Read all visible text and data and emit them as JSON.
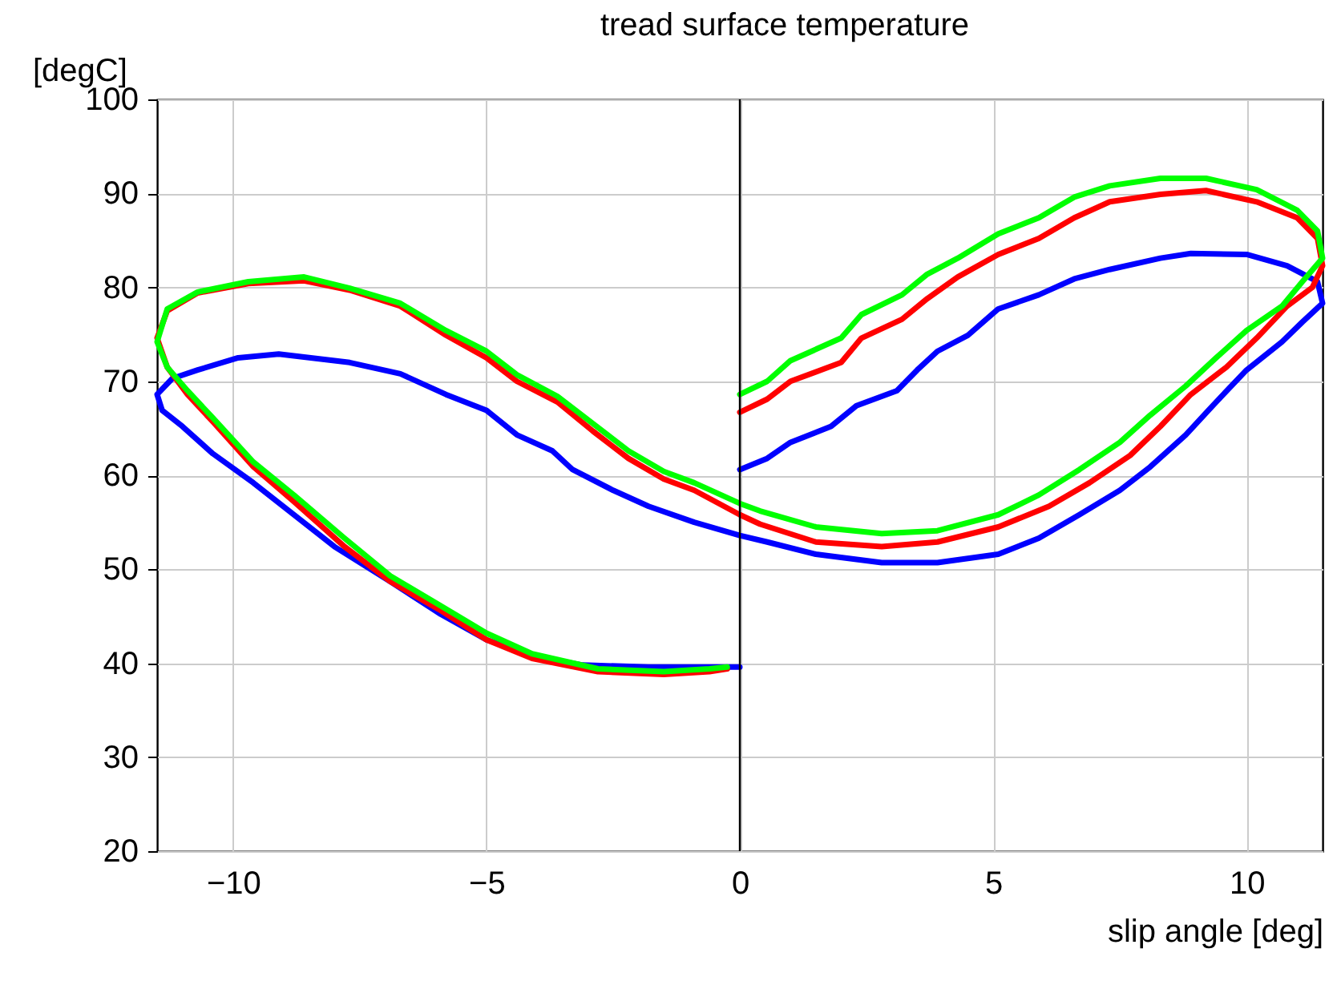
{
  "chart_data": {
    "type": "line",
    "title": "tread surface temperature",
    "xlabel": "slip angle [deg]",
    "ylabel": "[degC]",
    "xlim": [
      -11.5,
      11.5
    ],
    "xticks": [
      -10,
      -5,
      0,
      5,
      10
    ],
    "ylim": [
      20,
      100
    ],
    "yticks": [
      20,
      30,
      40,
      50,
      60,
      70,
      80,
      90,
      100
    ],
    "grid": true,
    "line_style": "solid",
    "marker": "none",
    "ref_lines": [
      {
        "axis": "x",
        "value": 0,
        "color": "#000000",
        "line_style": "solid"
      }
    ],
    "series": [
      {
        "color": "#0000ff",
        "x": [
          0,
          0.54,
          1.0,
          1.8,
          2.3,
          3.1,
          3.5,
          3.9,
          4.5,
          5.1,
          5.9,
          6.6,
          7.3,
          8.3,
          8.9,
          10.0,
          10.8,
          11.4,
          11.5,
          11.1,
          10.7,
          10.0,
          9.4,
          8.8,
          8.1,
          7.5,
          6.7,
          5.9,
          5.1,
          3.9,
          2.8,
          1.5,
          0.54,
          0,
          -0.9,
          -1.8,
          -2.5,
          -3.3,
          -3.7,
          -4.4,
          -5.0,
          -5.8,
          -6.7,
          -7.7,
          -9.1,
          -9.9,
          -10.7,
          -11.2,
          -11.5,
          -11.4,
          -11.0,
          -10.4,
          -9.6,
          -8.8,
          -8.0,
          -6.9,
          -5.9,
          -5.0,
          -4.1,
          -3.1,
          -1.8,
          -0.6,
          0
        ],
        "values": [
          60.6,
          61.8,
          63.5,
          65.2,
          67.4,
          69,
          71.2,
          73.2,
          74.9,
          77.7,
          79.2,
          80.9,
          81.9,
          83.1,
          83.6,
          83.5,
          82.3,
          80.6,
          78.3,
          76.3,
          74.2,
          71.2,
          67.8,
          64.3,
          60.9,
          58.4,
          55.8,
          53.3,
          51.6,
          50.7,
          50.7,
          51.6,
          52.9,
          53.6,
          55,
          56.7,
          58.4,
          60.6,
          62.6,
          64.3,
          66.9,
          68.6,
          70.8,
          72,
          72.9,
          72.5,
          71.2,
          70.3,
          68.6,
          66.9,
          65.2,
          62.3,
          59.2,
          55.8,
          52.4,
          48.7,
          45.2,
          42.5,
          40.8,
          39.8,
          39.6,
          39.6,
          39.6
        ]
      },
      {
        "color": "#ff0000",
        "x": [
          0,
          0.54,
          1.0,
          2.0,
          2.4,
          3.2,
          3.7,
          4.3,
          5.1,
          5.9,
          6.6,
          7.3,
          8.3,
          9.2,
          10.2,
          11.0,
          11.4,
          11.5,
          11.3,
          10.8,
          10.2,
          9.6,
          8.9,
          8.3,
          7.7,
          6.9,
          6.1,
          5.1,
          3.9,
          2.8,
          1.5,
          0.4,
          0,
          -0.9,
          -1.5,
          -2.2,
          -2.9,
          -3.6,
          -4.4,
          -5.0,
          -5.8,
          -6.7,
          -7.7,
          -8.6,
          -9.7,
          -10.7,
          -11.3,
          -11.5,
          -11.3,
          -10.9,
          -10.4,
          -9.6,
          -8.8,
          -7.8,
          -6.9,
          -5.9,
          -5.0,
          -4.1,
          -2.8,
          -1.5,
          -0.6,
          -0.25
        ],
        "values": [
          66.7,
          68.1,
          70,
          72,
          74.6,
          76.6,
          78.8,
          81.1,
          83.5,
          85.2,
          87.4,
          89.1,
          89.9,
          90.3,
          89.1,
          87.4,
          85.2,
          82.3,
          80,
          78,
          74.6,
          71.5,
          68.6,
          65.2,
          62.1,
          59.2,
          56.7,
          54.5,
          52.9,
          52.4,
          52.9,
          54.8,
          55.8,
          58.4,
          59.6,
          61.8,
          64.7,
          67.8,
          70,
          72.5,
          74.9,
          78,
          79.7,
          80.7,
          80.4,
          79.4,
          77.5,
          74.6,
          71.5,
          68.6,
          65.7,
          60.9,
          57.2,
          52.4,
          48.7,
          45.6,
          42.5,
          40.5,
          39.1,
          38.8,
          39.1,
          39.4
        ]
      },
      {
        "color": "#00ff00",
        "x": [
          0,
          0.54,
          1.0,
          2.0,
          2.4,
          3.2,
          3.7,
          4.3,
          5.1,
          5.9,
          6.6,
          7.3,
          8.3,
          9.2,
          10.2,
          11.0,
          11.4,
          11.5,
          11.1,
          10.7,
          10.0,
          9.4,
          8.8,
          8.1,
          7.5,
          6.7,
          5.9,
          5.1,
          3.9,
          2.8,
          1.5,
          0.4,
          0,
          -0.9,
          -1.5,
          -2.2,
          -2.9,
          -3.6,
          -4.4,
          -5.0,
          -5.8,
          -6.7,
          -7.7,
          -8.6,
          -9.7,
          -10.7,
          -11.3,
          -11.5,
          -11.3,
          -10.9,
          -10.4,
          -9.6,
          -8.8,
          -7.8,
          -6.9,
          -5.9,
          -5.0,
          -4.1,
          -2.8,
          -1.5,
          -0.6,
          -0.25
        ],
        "values": [
          68.6,
          70,
          72.2,
          74.6,
          77.1,
          79.2,
          81.4,
          83.1,
          85.7,
          87.4,
          89.6,
          90.8,
          91.6,
          91.6,
          90.4,
          88.2,
          86,
          83.1,
          80.6,
          78,
          75.4,
          72.5,
          69.5,
          66.4,
          63.5,
          60.6,
          57.9,
          55.8,
          54.1,
          53.8,
          54.5,
          56.2,
          57,
          59.2,
          60.4,
          62.6,
          65.5,
          68.4,
          70.7,
          73.2,
          75.4,
          78.3,
          79.9,
          81.1,
          80.6,
          79.5,
          77.7,
          74.2,
          71.5,
          69,
          66.1,
          61.4,
          57.9,
          53.3,
          49.3,
          46.1,
          43.2,
          41,
          39.4,
          39.1,
          39.4,
          39.6
        ]
      }
    ]
  }
}
